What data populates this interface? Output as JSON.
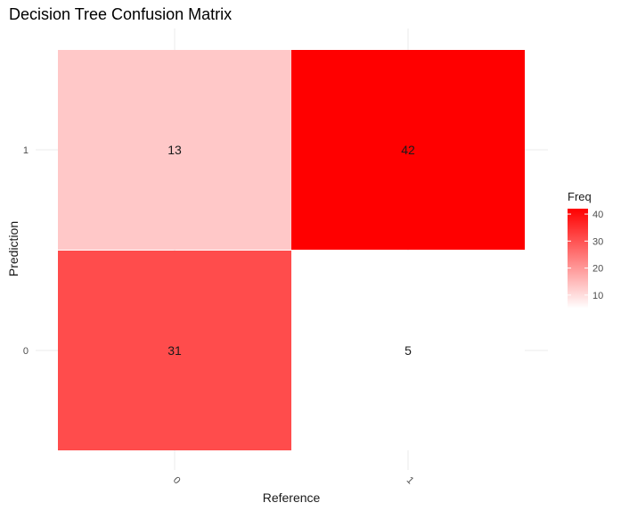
{
  "chart_data": {
    "type": "heatmap",
    "title": "Decision Tree Confusion Matrix",
    "xlabel": "Reference",
    "ylabel": "Prediction",
    "x_categories": [
      "0",
      "1"
    ],
    "y_categories": [
      "0",
      "1"
    ],
    "cells": [
      {
        "reference": "0",
        "prediction": "0",
        "freq": 31
      },
      {
        "reference": "1",
        "prediction": "0",
        "freq": 5
      },
      {
        "reference": "0",
        "prediction": "1",
        "freq": 13
      },
      {
        "reference": "1",
        "prediction": "1",
        "freq": 42
      }
    ],
    "legend": {
      "title": "Freq",
      "ticks": [
        10,
        20,
        30,
        40
      ],
      "range": [
        5,
        42
      ],
      "low_color": "#ffffff",
      "high_color": "#ff0000",
      "placement": "right"
    },
    "grid": true
  }
}
